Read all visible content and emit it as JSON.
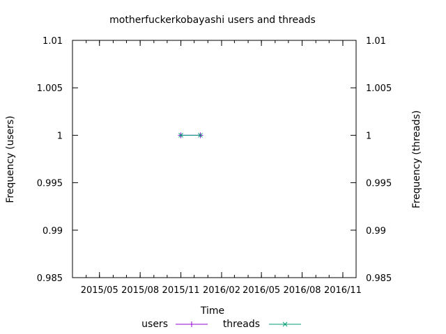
{
  "chart_data": {
    "type": "line",
    "title": "motherfuckerkobayashi users and threads",
    "xlabel": "Time",
    "ylabel_left": "Frequency (users)",
    "ylabel_right": "Frequency (threads)",
    "x_ticks": [
      "2015/05",
      "2015/08",
      "2015/11",
      "2016/02",
      "2016/05",
      "2016/08",
      "2016/11"
    ],
    "y_ticks": [
      "1.01",
      "1.005",
      "1",
      "0.995",
      "0.99",
      "0.985"
    ],
    "y_tick_values": [
      1.01,
      1.005,
      1,
      0.995,
      0.99,
      0.985
    ],
    "ylim": [
      0.985,
      1.01
    ],
    "xlim": [
      "2015-03-01",
      "2016-12-01"
    ],
    "series": [
      {
        "name": "users",
        "color": "#9400d3",
        "marker": "plus",
        "x": [
          "2015-11-01",
          "2015-12-15"
        ],
        "y": [
          1,
          1
        ]
      },
      {
        "name": "threads",
        "color": "#009e73",
        "marker": "cross",
        "x": [
          "2015-11-01",
          "2015-12-15"
        ],
        "y": [
          1,
          1
        ]
      }
    ],
    "legend_position": "bottom"
  }
}
